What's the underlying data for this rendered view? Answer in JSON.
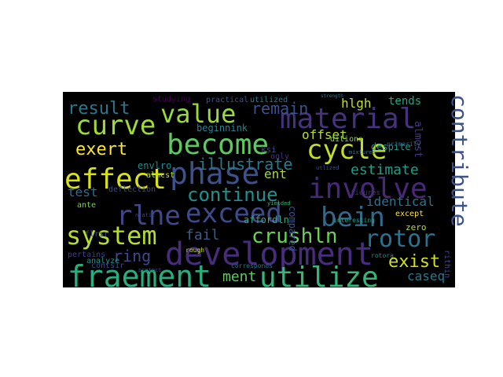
{
  "cloud": {
    "background": "#000000",
    "words": [
      {
        "text": "development",
        "color": "#472d7b",
        "weight": 10
      },
      {
        "text": "fraement",
        "color": "#29af7f",
        "weight": 10
      },
      {
        "text": "utilize",
        "color": "#35b779",
        "weight": 10
      },
      {
        "text": "system",
        "color": "#b5de2b",
        "weight": 9
      },
      {
        "text": "effect",
        "color": "#d8e219",
        "weight": 9
      },
      {
        "text": "phase",
        "color": "#3b528b",
        "weight": 9
      },
      {
        "text": "exceed",
        "color": "#3e4a89",
        "weight": 9
      },
      {
        "text": "become",
        "color": "#5ec962",
        "weight": 9
      },
      {
        "text": "material",
        "color": "#46327e",
        "weight": 9
      },
      {
        "text": "involve",
        "color": "#482878",
        "weight": 9
      },
      {
        "text": "bein",
        "color": "#31688e",
        "weight": 9
      },
      {
        "text": "cycle",
        "color": "#c2df23",
        "weight": 9
      },
      {
        "text": "curve",
        "color": "#9fda3a",
        "weight": 9
      },
      {
        "text": "value",
        "color": "#9bd93c",
        "weight": 9
      },
      {
        "text": "rotor",
        "color": "#2c728e",
        "weight": 8
      },
      {
        "text": "rlne",
        "color": "#3f4889",
        "weight": 8
      },
      {
        "text": "contribute",
        "color": "#3b528b",
        "weight": 8
      },
      {
        "text": "continue",
        "color": "#21908d",
        "weight": 7
      },
      {
        "text": "crushln",
        "color": "#6ece58",
        "weight": 7
      },
      {
        "text": "illustrate",
        "color": "#2a788e",
        "weight": 7
      },
      {
        "text": "result",
        "color": "#2a788e",
        "weight": 6
      },
      {
        "text": "exert",
        "color": "#fde725",
        "weight": 6
      },
      {
        "text": "estimate",
        "color": "#1f9e89",
        "weight": 6
      },
      {
        "text": "exist",
        "color": "#d0e11c",
        "weight": 6
      },
      {
        "text": "remain",
        "color": "#3b528b",
        "weight": 5
      },
      {
        "text": "ring",
        "color": "#3e4989",
        "weight": 5
      },
      {
        "text": "fail",
        "color": "#365d8d",
        "weight": 5
      },
      {
        "text": "ment",
        "color": "#5ec962",
        "weight": 5
      },
      {
        "text": "caseq",
        "color": "#2a788e",
        "weight": 5
      },
      {
        "text": "identical",
        "color": "#2c728e",
        "weight": 5
      },
      {
        "text": "offset",
        "color": "#b5de2b",
        "weight": 5
      },
      {
        "text": "hlgh",
        "color": "#bddf26",
        "weight": 5
      },
      {
        "text": "ent",
        "color": "#a8db34",
        "weight": 5
      },
      {
        "text": "test",
        "color": "#2f6c8e",
        "weight": 5
      },
      {
        "text": "tends",
        "color": "#22a884",
        "weight": 4
      },
      {
        "text": "beginnink",
        "color": "#26828e",
        "weight": 4
      },
      {
        "text": "almost",
        "color": "#453882",
        "weight": 4
      },
      {
        "text": "compared",
        "color": "#3b528b",
        "weight": 4
      },
      {
        "text": "envlro",
        "color": "#238a8d",
        "weight": 4
      },
      {
        "text": "affordln",
        "color": "#2ab07f",
        "weight": 4
      },
      {
        "text": "except",
        "color": "#fde725",
        "weight": 3
      },
      {
        "text": "zero",
        "color": "#b8de29",
        "weight": 3
      },
      {
        "text": "despite",
        "color": "#1f988b",
        "weight": 3
      },
      {
        "text": "ditions",
        "color": "#84d44b",
        "weight": 3
      },
      {
        "text": "ksi",
        "color": "#3e4a89",
        "weight": 3
      },
      {
        "text": "oqly",
        "color": "#46327e",
        "weight": 3
      },
      {
        "text": "studying",
        "color": "#440154",
        "weight": 3
      },
      {
        "text": "practical",
        "color": "#3b528b",
        "weight": 3
      },
      {
        "text": "utilized",
        "color": "#2a788e",
        "weight": 3
      },
      {
        "text": "almcst",
        "color": "#b5de2b",
        "weight": 3
      },
      {
        "text": "deflection",
        "color": "#3e4a89",
        "weight": 3
      },
      {
        "text": "ante",
        "color": "#7ad151",
        "weight": 3
      },
      {
        "text": "analyze",
        "color": "#21908d",
        "weight": 3
      },
      {
        "text": "pertains",
        "color": "#433e85",
        "weight": 3
      },
      {
        "text": "contsir",
        "color": "#3e4a89",
        "weight": 3
      },
      {
        "text": "flrsr",
        "color": "#3e4a89",
        "weight": 3
      },
      {
        "text": "fieures",
        "color": "#472d7b",
        "weight": 3
      },
      {
        "text": "rithin",
        "color": "#3e4a89",
        "weight": 3
      },
      {
        "text": "rough",
        "color": "#c2df23",
        "weight": 2
      },
      {
        "text": "corresponds",
        "color": "#2a788e",
        "weight": 2
      },
      {
        "text": "rotora",
        "color": "#228d8d",
        "weight": 2
      },
      {
        "text": "interesting",
        "color": "#20a386",
        "weight": 2
      },
      {
        "text": "primarily",
        "color": "#31688e",
        "weight": 2
      },
      {
        "text": "yielded",
        "color": "#35b779",
        "weight": 2
      },
      {
        "text": "strength",
        "color": "#2a788e",
        "weight": 2
      },
      {
        "text": "ntatic",
        "color": "#433e85",
        "weight": 2
      },
      {
        "text": "protect",
        "color": "#3e4a89",
        "weight": 2
      },
      {
        "text": "utlized",
        "color": "#3b528b",
        "weight": 2
      },
      {
        "text": "mixtures",
        "color": "#2c728e",
        "weight": 2
      }
    ]
  }
}
